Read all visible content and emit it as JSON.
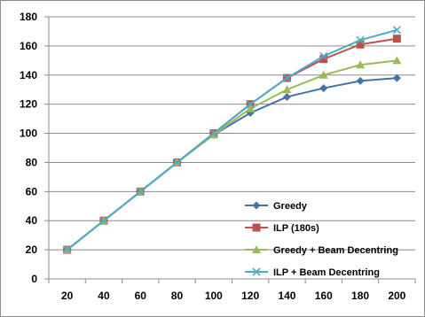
{
  "chart_data": {
    "type": "line",
    "title": "",
    "xlabel": "",
    "ylabel": "",
    "x": [
      20,
      40,
      60,
      80,
      100,
      120,
      140,
      160,
      180,
      200
    ],
    "ylim": [
      0,
      180
    ],
    "y_ticks": [
      "0",
      "20",
      "40",
      "60",
      "80",
      "100",
      "120",
      "140",
      "160",
      "180"
    ],
    "x_ticks": [
      "20",
      "40",
      "60",
      "80",
      "100",
      "120",
      "140",
      "160",
      "180",
      "200"
    ],
    "grid": "horizontal",
    "legend_position": "right",
    "series": [
      {
        "name": "Greedy",
        "color": "#4572A7",
        "marker": "diamond",
        "values": [
          20,
          40,
          60,
          80,
          99,
          114,
          125,
          131,
          136,
          138
        ]
      },
      {
        "name": "ILP (180s)",
        "color": "#C0504D",
        "marker": "square",
        "values": [
          20,
          40,
          60,
          80,
          100,
          120,
          138,
          151,
          161,
          165
        ]
      },
      {
        "name": "Greedy + Beam Decentring",
        "color": "#9BBB59",
        "marker": "triangle",
        "values": [
          20,
          40,
          60,
          80,
          99,
          117,
          130,
          140,
          147,
          150
        ]
      },
      {
        "name": "ILP + Beam Decentring",
        "color": "#4BACC6",
        "marker": "x",
        "values": [
          20,
          40,
          60,
          80,
          100,
          120,
          138,
          153,
          164,
          171
        ]
      }
    ]
  }
}
